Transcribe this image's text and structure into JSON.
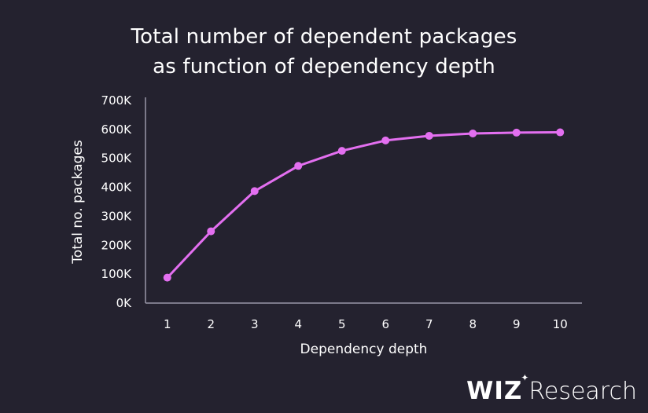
{
  "chart_data": {
    "type": "line",
    "title_lines": [
      "Total number of dependent packages",
      "as function of dependency depth"
    ],
    "xlabel": "Dependency depth",
    "ylabel": "Total no. packages",
    "x": [
      1,
      2,
      3,
      4,
      5,
      6,
      7,
      8,
      9,
      10
    ],
    "y": [
      88000,
      248000,
      387000,
      474000,
      526000,
      562000,
      578000,
      586000,
      589000,
      590000
    ],
    "y_ticks": [
      0,
      100000,
      200000,
      300000,
      400000,
      500000,
      600000,
      700000
    ],
    "y_tick_labels": [
      "0K",
      "100K",
      "200K",
      "300K",
      "400K",
      "500K",
      "600K",
      "700K"
    ],
    "x_tick_labels": [
      "1",
      "2",
      "3",
      "4",
      "5",
      "6",
      "7",
      "8",
      "9",
      "10"
    ],
    "ylim": [
      0,
      700000
    ],
    "xlim": [
      0.5,
      10.5
    ],
    "grid": false,
    "line_color": "#e36ff0",
    "axis_color": "#9a98a8",
    "background": "#24222f"
  },
  "brand": {
    "logo": "WIZ",
    "text": "Research"
  }
}
